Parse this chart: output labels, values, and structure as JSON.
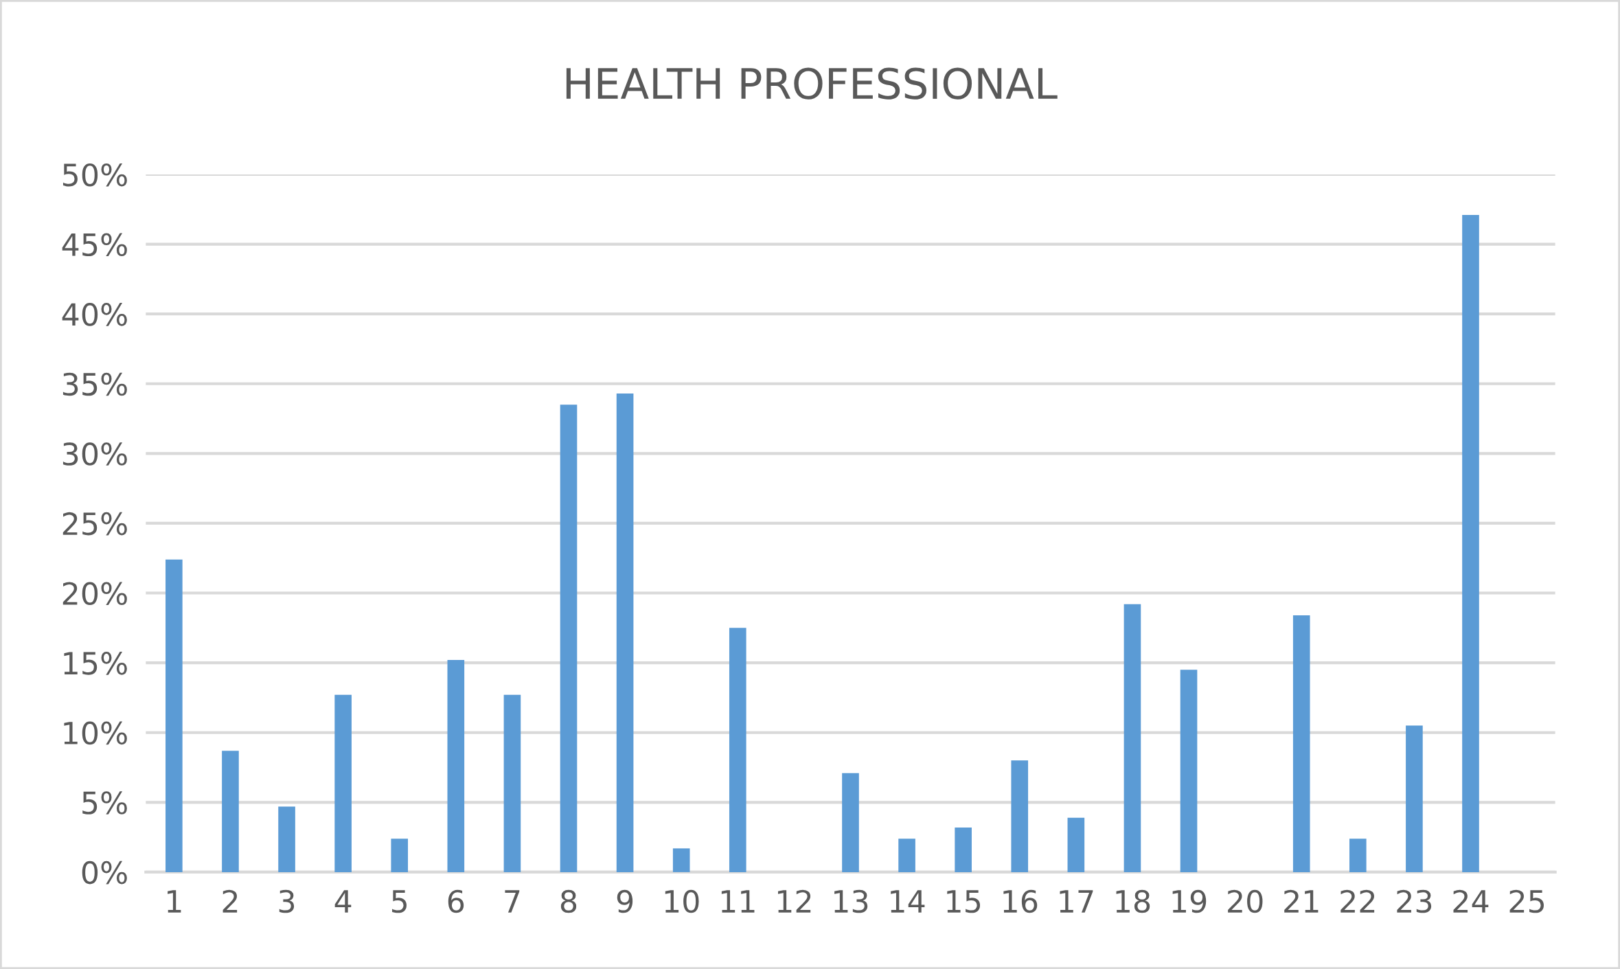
{
  "chart_data": {
    "type": "bar",
    "title": "HEALTH PROFESSIONAL",
    "categories": [
      "1",
      "2",
      "3",
      "4",
      "5",
      "6",
      "7",
      "8",
      "9",
      "10",
      "11",
      "12",
      "13",
      "14",
      "15",
      "16",
      "17",
      "18",
      "19",
      "20",
      "21",
      "22",
      "23",
      "24",
      "25"
    ],
    "values": [
      22.4,
      8.7,
      4.7,
      12.7,
      2.4,
      15.2,
      12.7,
      33.5,
      34.3,
      1.7,
      17.5,
      0,
      7.1,
      2.4,
      3.2,
      8.0,
      3.9,
      19.2,
      14.5,
      0,
      18.4,
      2.4,
      10.5,
      47.1,
      0
    ],
    "color": "#5b9bd5",
    "ylim": [
      0,
      50
    ],
    "yticks": [
      {
        "value": 0,
        "label": "0%"
      },
      {
        "value": 5,
        "label": "5%"
      },
      {
        "value": 10,
        "label": "10%"
      },
      {
        "value": 15,
        "label": "15%"
      },
      {
        "value": 20,
        "label": "20%"
      },
      {
        "value": 25,
        "label": "25%"
      },
      {
        "value": 30,
        "label": "30%"
      },
      {
        "value": 35,
        "label": "35%"
      },
      {
        "value": 40,
        "label": "40%"
      },
      {
        "value": 45,
        "label": "45%"
      },
      {
        "value": 50,
        "label": "50%"
      }
    ],
    "grid": "y"
  }
}
